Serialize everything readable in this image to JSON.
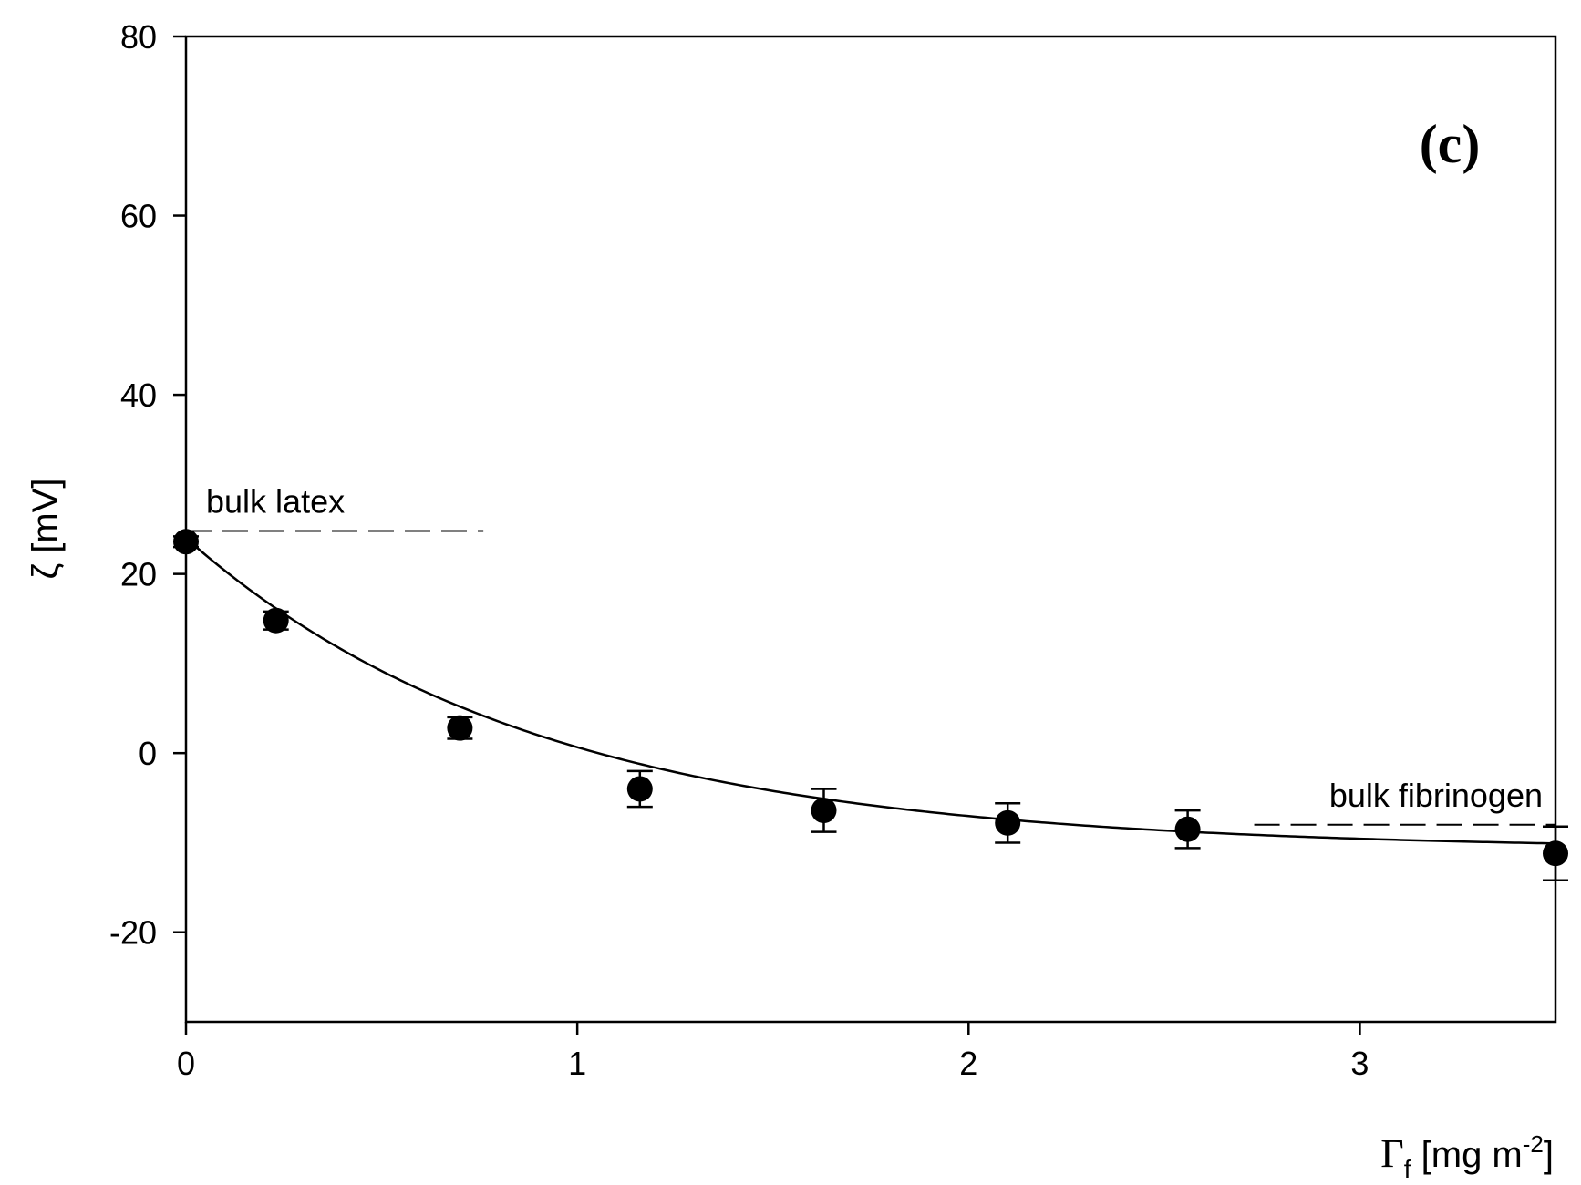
{
  "chart_data": {
    "type": "scatter",
    "panel_label": "(c)",
    "xlabel": {
      "symbol": "Γ",
      "sub": "f",
      "unit_pre": " [mg m",
      "sup": "-2",
      "unit_post": "]"
    },
    "ylabel": "ζ [mV]",
    "xlim": [
      0,
      3.5
    ],
    "ylim": [
      -30,
      80
    ],
    "xticks": [
      0,
      1,
      2,
      3
    ],
    "yticks": [
      -20,
      0,
      20,
      40,
      60,
      80
    ],
    "grid": false,
    "points": [
      {
        "x": 0.0,
        "y": 23.6,
        "err": 0.6
      },
      {
        "x": 0.23,
        "y": 14.8,
        "err": 1.0
      },
      {
        "x": 0.7,
        "y": 2.8,
        "err": 1.2
      },
      {
        "x": 1.16,
        "y": -4.0,
        "err": 2.0
      },
      {
        "x": 1.63,
        "y": -6.4,
        "err": 2.4
      },
      {
        "x": 2.1,
        "y": -7.8,
        "err": 2.2
      },
      {
        "x": 2.56,
        "y": -8.5,
        "err": 2.1
      },
      {
        "x": 3.5,
        "y": -11.2,
        "err": 3.0
      }
    ],
    "fit": {
      "type": "exponential",
      "y0": 24.0,
      "yinf": -10.8,
      "decay": 0.9
    },
    "reference_lines": [
      {
        "label": "bulk latex",
        "y": 24.8,
        "x_from": 0.0,
        "x_to": 0.76
      },
      {
        "label": "bulk fibrinogen",
        "y": -8.0,
        "x_from": 2.73,
        "x_to": 3.5
      }
    ]
  }
}
